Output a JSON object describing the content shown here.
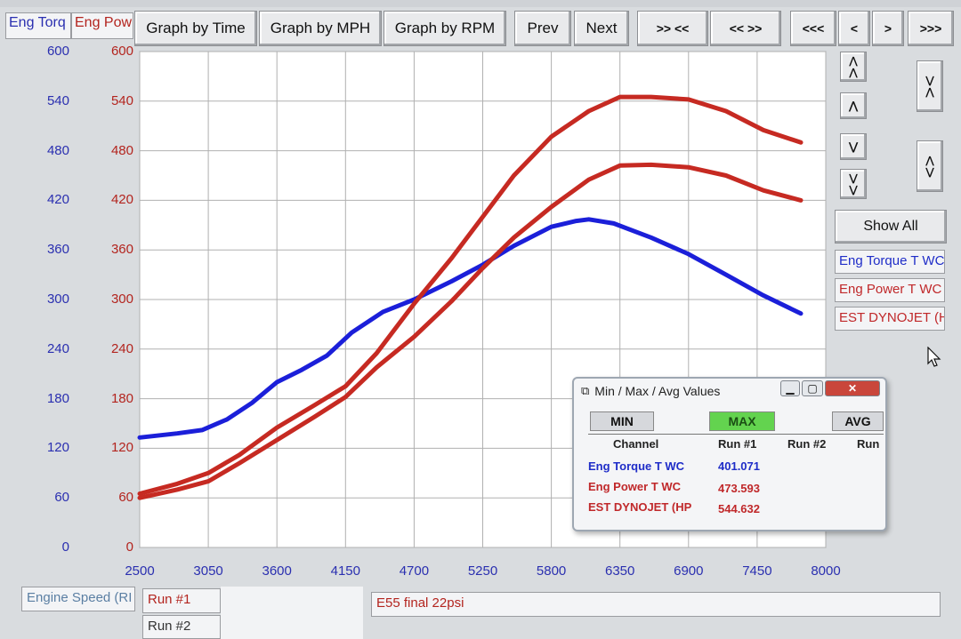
{
  "toolbar": {
    "buttons": [
      "Graph by Time",
      "Graph by MPH",
      "Graph by RPM",
      "Prev",
      "Next",
      ">> <<",
      "<< >>",
      "<<<",
      "<",
      ">",
      ">>>"
    ]
  },
  "axis_headers": {
    "left": "Eng Torq",
    "right": "Eng Pow"
  },
  "side_panel": {
    "show_all_label": "Show All",
    "channels": [
      "Eng Torque T WC",
      "Eng Power T WC",
      "EST DYNOJET (H"
    ]
  },
  "bottom": {
    "x_channel": "Engine Speed (RI",
    "run1_label": "Run #1",
    "run2_label": "Run #2",
    "run_note": "E55 final 22psi"
  },
  "minmax_dialog": {
    "title": "Min / Max / Avg Values",
    "tabs": {
      "min": "MIN",
      "max": "MAX",
      "avg": "AVG"
    },
    "columns": {
      "channel": "Channel",
      "run1": "Run #1",
      "run2": "Run #2",
      "run3": "Run"
    },
    "rows": [
      {
        "channel": "Eng Torque T WC",
        "run1": "401.071",
        "color": "#1f2dc8"
      },
      {
        "channel": "Eng Power T WC",
        "run1": "473.593",
        "color": "#c0282a"
      },
      {
        "channel": "EST DYNOJET (HP",
        "run1": "544.632",
        "color": "#c0282a"
      }
    ]
  },
  "colors": {
    "torque": "#1b1fd9",
    "power": "#c62a22",
    "dynojet": "#c62a22",
    "left_axis": "#2a2fb0",
    "right_axis": "#b3241e",
    "max_tab": "#63d34f"
  },
  "chart_data": {
    "type": "line",
    "xlabel": "Engine Speed (RI",
    "ylabel": "Eng Torq",
    "y2label": "Eng Pow",
    "xlim": [
      2500,
      8000
    ],
    "ylim": [
      0,
      600
    ],
    "x_ticks": [
      "2500",
      "3050",
      "3600",
      "4150",
      "4700",
      "5250",
      "5800",
      "6350",
      "6900",
      "7450",
      "8000"
    ],
    "y_ticks": [
      "0",
      "60",
      "120",
      "180",
      "240",
      "300",
      "360",
      "420",
      "480",
      "540",
      "600"
    ],
    "y2_ticks": [
      "0",
      "60",
      "120",
      "180",
      "240",
      "300",
      "360",
      "420",
      "480",
      "540",
      "600"
    ],
    "grid": true,
    "series": [
      {
        "name": "Eng Torque T WC",
        "color": "#1b1fd9",
        "points": [
          [
            2500,
            133
          ],
          [
            2800,
            138
          ],
          [
            3000,
            142
          ],
          [
            3200,
            155
          ],
          [
            3400,
            175
          ],
          [
            3600,
            200
          ],
          [
            3800,
            215
          ],
          [
            4000,
            232
          ],
          [
            4200,
            260
          ],
          [
            4450,
            285
          ],
          [
            4700,
            300
          ],
          [
            5000,
            322
          ],
          [
            5250,
            342
          ],
          [
            5500,
            365
          ],
          [
            5800,
            388
          ],
          [
            6000,
            395
          ],
          [
            6100,
            397
          ],
          [
            6300,
            392
          ],
          [
            6600,
            375
          ],
          [
            6900,
            355
          ],
          [
            7200,
            330
          ],
          [
            7500,
            305
          ],
          [
            7800,
            283
          ]
        ]
      },
      {
        "name": "Eng Power T WC",
        "color": "#c62a22",
        "points": [
          [
            2500,
            60
          ],
          [
            2800,
            70
          ],
          [
            3050,
            80
          ],
          [
            3300,
            102
          ],
          [
            3600,
            130
          ],
          [
            3900,
            158
          ],
          [
            4150,
            182
          ],
          [
            4400,
            218
          ],
          [
            4700,
            255
          ],
          [
            5000,
            298
          ],
          [
            5250,
            338
          ],
          [
            5500,
            375
          ],
          [
            5800,
            412
          ],
          [
            6100,
            445
          ],
          [
            6350,
            462
          ],
          [
            6600,
            463
          ],
          [
            6900,
            460
          ],
          [
            7200,
            450
          ],
          [
            7500,
            432
          ],
          [
            7800,
            420
          ]
        ]
      },
      {
        "name": "EST DYNOJET (HP",
        "color": "#c62a22",
        "points": [
          [
            2500,
            65
          ],
          [
            2800,
            77
          ],
          [
            3050,
            90
          ],
          [
            3300,
            112
          ],
          [
            3600,
            145
          ],
          [
            3900,
            172
          ],
          [
            4150,
            195
          ],
          [
            4400,
            235
          ],
          [
            4700,
            295
          ],
          [
            5000,
            350
          ],
          [
            5250,
            400
          ],
          [
            5500,
            450
          ],
          [
            5800,
            497
          ],
          [
            6100,
            528
          ],
          [
            6350,
            545
          ],
          [
            6600,
            545
          ],
          [
            6900,
            542
          ],
          [
            7200,
            528
          ],
          [
            7500,
            505
          ],
          [
            7800,
            490
          ]
        ]
      }
    ]
  }
}
